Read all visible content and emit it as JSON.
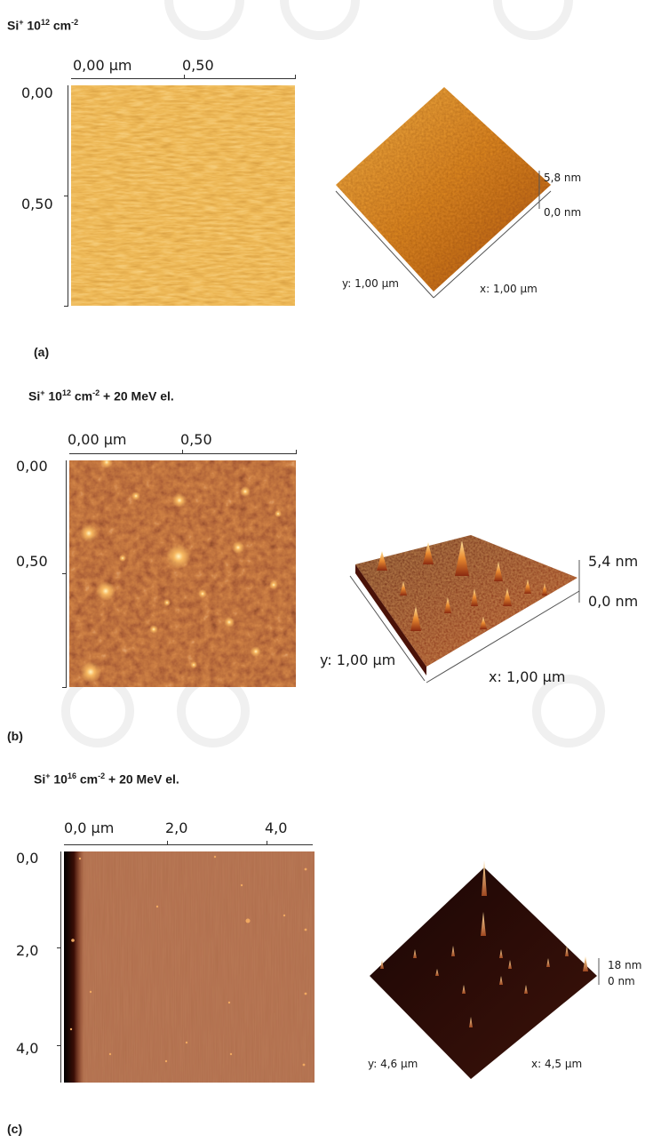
{
  "panels": [
    {
      "id": "a",
      "title": {
        "base": "Si",
        "ion_sup": "+",
        "dose_pre": " 10",
        "dose_sup": "12",
        "unit_pre": " cm",
        "unit_sup": "-2",
        "suffix": ""
      },
      "label": "(a)",
      "x_ticks": [
        "0,00 µm",
        "0,50"
      ],
      "y_ticks": [
        "0,00",
        "0,50"
      ],
      "z_labels": [
        "5,8 nm",
        "0,0 nm"
      ],
      "axis_labels": [
        "y: 1,00 µm",
        "x: 1,00 µm"
      ],
      "colors": {
        "low": "#a24a0c",
        "mid": "#dc7c1a",
        "high": "#f7b544"
      }
    },
    {
      "id": "b",
      "title": {
        "base": "Si",
        "ion_sup": "+",
        "dose_pre": " 10",
        "dose_sup": "12",
        "unit_pre": " cm",
        "unit_sup": "-2",
        "suffix": " + 20 MeV el."
      },
      "label": "(b)",
      "x_ticks": [
        "0,00 µm",
        "0,50"
      ],
      "y_ticks": [
        "0,00",
        "0,50"
      ],
      "z_labels": [
        "5,4 nm",
        "0,0 nm"
      ],
      "axis_labels": [
        "y: 1,00 µm",
        "x: 1,00 µm"
      ],
      "colors": {
        "low": "#3a0c05",
        "mid": "#8f2d10",
        "high": "#f2b15b"
      }
    },
    {
      "id": "c",
      "title": {
        "base": "Si",
        "ion_sup": "+",
        "dose_pre": " 10",
        "dose_sup": "16",
        "unit_pre": " cm",
        "unit_sup": "-2",
        "suffix": " + 20 MeV el."
      },
      "label": "(c)",
      "x_ticks": [
        "0,0 µm",
        "2,0",
        "4,0"
      ],
      "y_ticks": [
        "0,0",
        "2,0",
        "4,0"
      ],
      "z_labels": [
        "18 nm",
        "0 nm"
      ],
      "axis_labels": [
        "y: 4,6 µm",
        "x: 4,5 µm"
      ],
      "colors": {
        "low": "#2a0a05",
        "mid": "#7a2a14",
        "high": "#f0a04a"
      }
    }
  ]
}
